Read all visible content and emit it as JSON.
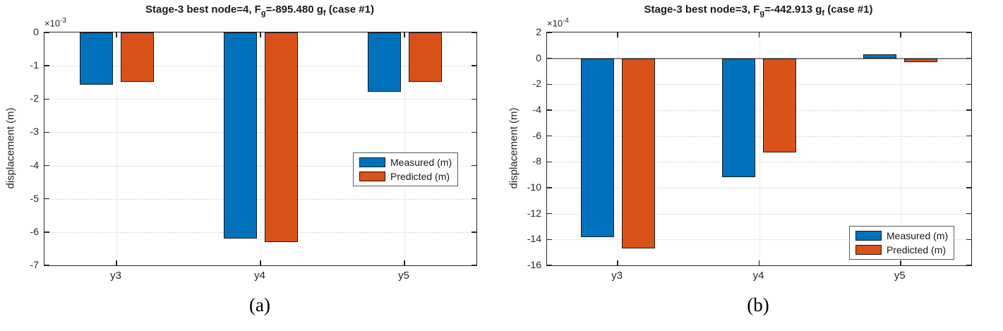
{
  "figure": {
    "captions": [
      "(a)",
      "(b)"
    ]
  },
  "colors": {
    "measured_blue": "#0072BD",
    "predicted_orange": "#D95319",
    "axis": "#262626",
    "zero_line_gray": "#8C8C8C"
  },
  "chart_data": [
    {
      "type": "bar",
      "title": "Stage-3 best node=4, Fg=-895.480 gf (case #1)",
      "title_segments": [
        {
          "text": "Stage-3 best node=4, F"
        },
        {
          "text": "g",
          "sub": true
        },
        {
          "text": "=-895.480 g"
        },
        {
          "text": "f",
          "sub": true
        },
        {
          "text": " (case #1)"
        }
      ],
      "ylabel": "displacement (m)",
      "exponent": {
        "base": "×10",
        "power": "-3"
      },
      "categories": [
        "y3",
        "y4",
        "y5"
      ],
      "series": [
        {
          "name": "Measured (m)",
          "color": "#0072BD",
          "values": [
            -1.57,
            -6.2,
            -1.78
          ]
        },
        {
          "name": "Predicted (m)",
          "color": "#D95319",
          "values": [
            -1.48,
            -6.3,
            -1.48
          ]
        }
      ],
      "value_unit": "1e-3 m",
      "ylim": [
        -7,
        0
      ],
      "yticks": [
        0,
        -1,
        -2,
        -3,
        -4,
        -5,
        -6,
        -7
      ],
      "grid": true,
      "zero_line": false,
      "legend": {
        "position": "middle-right",
        "items": [
          "Measured (m)",
          "Predicted (m)"
        ]
      },
      "caption": "(a)"
    },
    {
      "type": "bar",
      "title": "Stage-3 best node=3, Fg=-442.913 gf (case #1)",
      "title_segments": [
        {
          "text": "Stage-3 best node=3, F"
        },
        {
          "text": "g",
          "sub": true
        },
        {
          "text": "=-442.913 g"
        },
        {
          "text": "f",
          "sub": true
        },
        {
          "text": " (case #1)"
        }
      ],
      "ylabel": "displacement (m)",
      "exponent": {
        "base": "×10",
        "power": "-4"
      },
      "categories": [
        "y3",
        "y4",
        "y5"
      ],
      "series": [
        {
          "name": "Measured (m)",
          "color": "#0072BD",
          "values": [
            -13.8,
            -9.2,
            0.3
          ]
        },
        {
          "name": "Predicted (m)",
          "color": "#D95319",
          "values": [
            -14.7,
            -7.3,
            -0.3
          ]
        }
      ],
      "value_unit": "1e-4 m",
      "ylim": [
        -16,
        2
      ],
      "yticks": [
        2,
        0,
        -2,
        -4,
        -6,
        -8,
        -10,
        -12,
        -14,
        -16
      ],
      "grid": true,
      "zero_line": true,
      "legend": {
        "position": "bottom-right",
        "items": [
          "Measured (m)",
          "Predicted (m)"
        ]
      },
      "caption": "(b)"
    }
  ]
}
